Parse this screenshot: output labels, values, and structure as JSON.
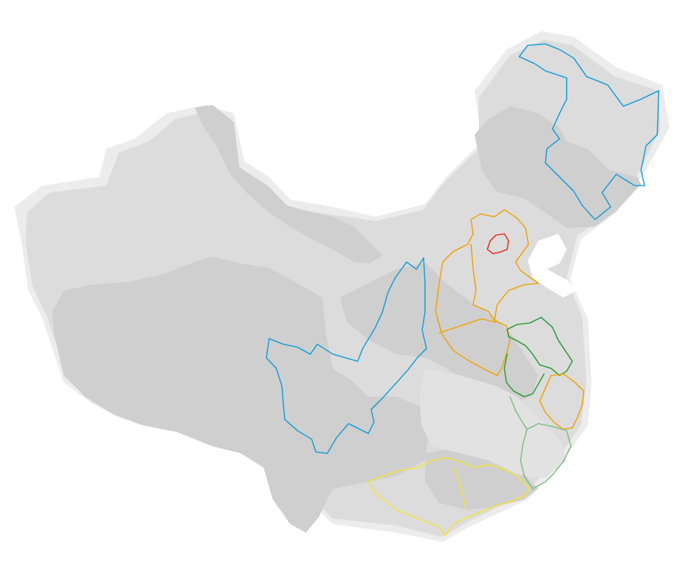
{
  "map": {
    "colors": {
      "background": "#ffffff",
      "land_halo": "#ececec",
      "land_light": "#e2e2e2",
      "land_mid": "#dcdcdc",
      "land_dark": "#cfcfcf"
    },
    "regions": [
      {
        "name": "northeast-region-outline",
        "color": "#1a9fd8"
      },
      {
        "name": "southwest-region-outline",
        "color": "#1a9fd8"
      },
      {
        "name": "north-central-region-outline",
        "color": "#f0a30a"
      },
      {
        "name": "beijing-outline",
        "color": "#e0301e"
      },
      {
        "name": "jiangsu-outline",
        "color": "#2f9e36"
      },
      {
        "name": "zhejiang-outline",
        "color": "#f0a30a"
      },
      {
        "name": "fujian-outline",
        "color": "#7fbf86"
      },
      {
        "name": "south-region-outline",
        "color": "#f5e23a"
      }
    ]
  }
}
